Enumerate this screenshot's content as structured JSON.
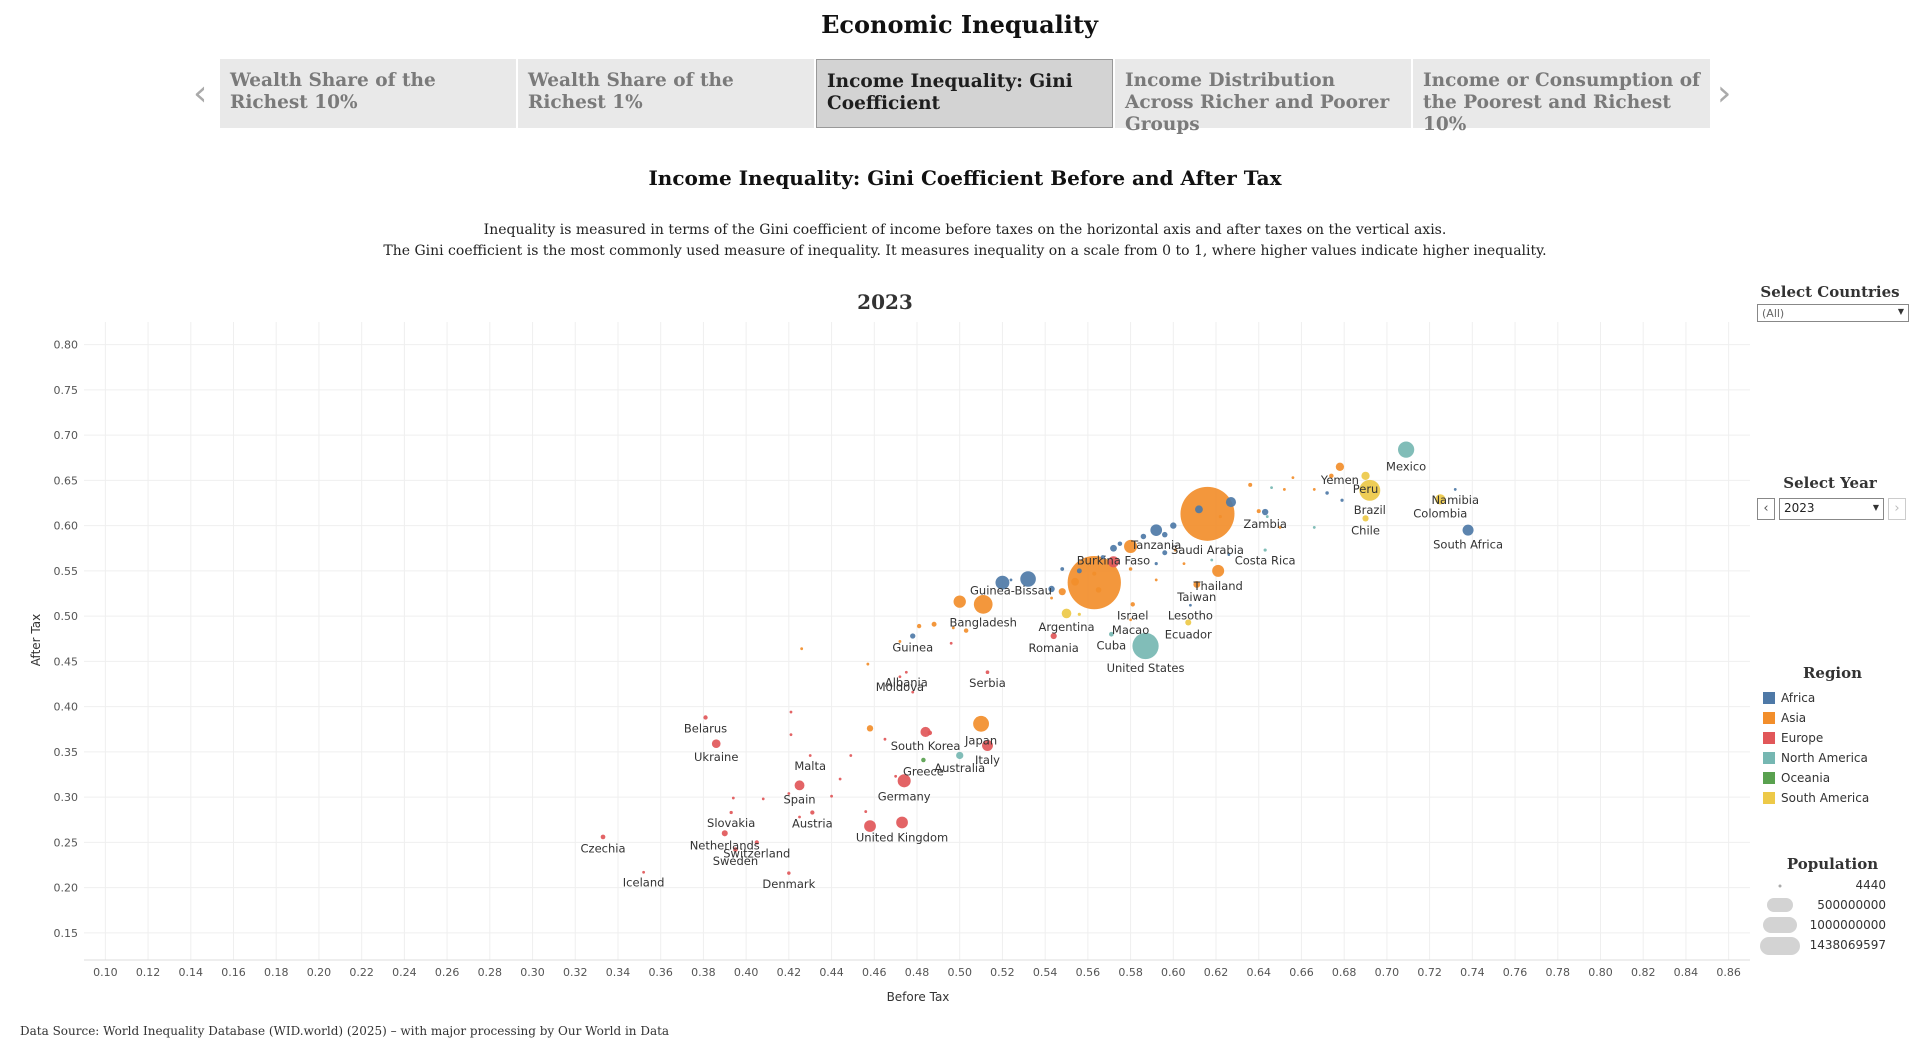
{
  "page_title": "Economic Inequality",
  "tabs": [
    {
      "label": "Wealth Share of the Richest 10%"
    },
    {
      "label": "Wealth Share of the Richest 1%"
    },
    {
      "label": "Income Inequality: Gini Coefficient"
    },
    {
      "label": "Income Distribution Across Richer and Poorer Groups"
    },
    {
      "label": "Income or Consumption of the Poorest and Richest 10%"
    }
  ],
  "nav": {
    "prev_icon": "chevron-left-icon",
    "next_icon": "chevron-right-icon",
    "prev_glyph": "‹",
    "next_glyph": "›"
  },
  "chart_title": "Income Inequality: Gini Coefficient Before and After Tax",
  "description": [
    "Inequality is measured in terms of the Gini coefficient of income before taxes on the horizontal axis and after taxes on the vertical axis.",
    "The Gini coefficient is the most commonly used measure of inequality. It measures inequality on a scale from 0 to 1, where higher values indicate higher inequality."
  ],
  "year_heading": "2023",
  "filters": {
    "countries_title": "Select Countries",
    "countries_value": "(All)",
    "year_title": "Select Year",
    "year_value": "2023"
  },
  "legend": {
    "region_title": "Region",
    "regions": [
      {
        "name": "Africa",
        "color": "#4e79a7"
      },
      {
        "name": "Asia",
        "color": "#f28e2b"
      },
      {
        "name": "Europe",
        "color": "#e15759"
      },
      {
        "name": "North America",
        "color": "#76b7b2"
      },
      {
        "name": "Oceania",
        "color": "#59a14f"
      },
      {
        "name": "South America",
        "color": "#edc948"
      }
    ],
    "population_title": "Population",
    "population_values": [
      "4440",
      "500000000",
      "1000000000",
      "1438069597"
    ]
  },
  "source": "Data Source: World Inequality Database (WID.world) (2025) – with major processing by Our World in Data",
  "chart_data": {
    "type": "scatter",
    "xlabel": "Before Tax",
    "ylabel": "After Tax",
    "xlim": [
      0.09,
      0.87
    ],
    "ylim": [
      0.12,
      0.825
    ],
    "x_ticks": [
      "0.10",
      "0.12",
      "0.14",
      "0.16",
      "0.18",
      "0.20",
      "0.22",
      "0.24",
      "0.26",
      "0.28",
      "0.30",
      "0.32",
      "0.34",
      "0.36",
      "0.38",
      "0.40",
      "0.42",
      "0.44",
      "0.46",
      "0.48",
      "0.50",
      "0.52",
      "0.54",
      "0.56",
      "0.58",
      "0.60",
      "0.62",
      "0.64",
      "0.66",
      "0.68",
      "0.70",
      "0.72",
      "0.74",
      "0.76",
      "0.78",
      "0.80",
      "0.82",
      "0.84",
      "0.86"
    ],
    "y_ticks": [
      "0.15",
      "0.20",
      "0.25",
      "0.30",
      "0.35",
      "0.40",
      "0.45",
      "0.50",
      "0.55",
      "0.60",
      "0.65",
      "0.70",
      "0.75",
      "0.80"
    ],
    "grid": true,
    "points": [
      {
        "label": "Saudi Arabia",
        "x": 0.616,
        "y": 0.613,
        "region": "Asia",
        "size": 1438069597
      },
      {
        "label": "",
        "x": 0.563,
        "y": 0.537,
        "region": "Asia",
        "size": 1400000000
      },
      {
        "label": "United States",
        "x": 0.587,
        "y": 0.467,
        "region": "North America",
        "size": 340000000
      },
      {
        "label": "Mexico",
        "x": 0.709,
        "y": 0.684,
        "region": "North America",
        "size": 130000000
      },
      {
        "label": "Brazil",
        "x": 0.692,
        "y": 0.639,
        "region": "South America",
        "size": 216000000
      },
      {
        "label": "South Africa",
        "x": 0.738,
        "y": 0.595,
        "region": "Africa",
        "size": 60000000
      },
      {
        "label": "Colombia",
        "x": 0.725,
        "y": 0.629,
        "region": "South America",
        "size": 52000000
      },
      {
        "label": "Namibia",
        "x": 0.732,
        "y": 0.64,
        "region": "Africa",
        "size": 2600000
      },
      {
        "label": "Peru",
        "x": 0.69,
        "y": 0.655,
        "region": "South America",
        "size": 34000000
      },
      {
        "label": "Yemen",
        "x": 0.678,
        "y": 0.665,
        "region": "Asia",
        "size": 34000000
      },
      {
        "label": "Chile",
        "x": 0.69,
        "y": 0.608,
        "region": "South America",
        "size": 19000000
      },
      {
        "label": "Zambia",
        "x": 0.643,
        "y": 0.615,
        "region": "Africa",
        "size": 20000000
      },
      {
        "label": "Costa Rica",
        "x": 0.643,
        "y": 0.573,
        "region": "North America",
        "size": 5000000
      },
      {
        "label": "Thailand",
        "x": 0.621,
        "y": 0.55,
        "region": "Asia",
        "size": 71000000
      },
      {
        "label": "Taiwan",
        "x": 0.611,
        "y": 0.535,
        "region": "Asia",
        "size": 23000000
      },
      {
        "label": "Tanzania",
        "x": 0.592,
        "y": 0.595,
        "region": "Africa",
        "size": 67000000
      },
      {
        "label": "Burkina Faso",
        "x": 0.572,
        "y": 0.575,
        "region": "Africa",
        "size": 23000000
      },
      {
        "label": "Lesotho",
        "x": 0.608,
        "y": 0.512,
        "region": "Africa",
        "size": 2300000
      },
      {
        "label": "Israel",
        "x": 0.581,
        "y": 0.513,
        "region": "Asia",
        "size": 9700000
      },
      {
        "label": "Ecuador",
        "x": 0.607,
        "y": 0.493,
        "region": "South America",
        "size": 18000000
      },
      {
        "label": "Macao",
        "x": 0.58,
        "y": 0.496,
        "region": "Asia",
        "size": 700000
      },
      {
        "label": "Cuba",
        "x": 0.571,
        "y": 0.48,
        "region": "North America",
        "size": 11000000
      },
      {
        "label": "Argentina",
        "x": 0.55,
        "y": 0.503,
        "region": "South America",
        "size": 46000000
      },
      {
        "label": "Romania",
        "x": 0.544,
        "y": 0.478,
        "region": "Europe",
        "size": 19000000
      },
      {
        "label": "Guinea-Bissau",
        "x": 0.524,
        "y": 0.54,
        "region": "Africa",
        "size": 2100000
      },
      {
        "label": "Bangladesh",
        "x": 0.511,
        "y": 0.513,
        "region": "Asia",
        "size": 173000000
      },
      {
        "label": "Guinea",
        "x": 0.478,
        "y": 0.478,
        "region": "Africa",
        "size": 14000000
      },
      {
        "label": "Albania",
        "x": 0.475,
        "y": 0.438,
        "region": "Europe",
        "size": 2800000
      },
      {
        "label": "Moldova",
        "x": 0.472,
        "y": 0.433,
        "region": "Europe",
        "size": 2500000
      },
      {
        "label": "Serbia",
        "x": 0.513,
        "y": 0.438,
        "region": "Europe",
        "size": 6600000
      },
      {
        "label": "South Korea",
        "x": 0.484,
        "y": 0.372,
        "region": "Europe",
        "size": 51000000
      },
      {
        "label": "Japan",
        "x": 0.51,
        "y": 0.381,
        "region": "Asia",
        "size": 124000000
      },
      {
        "label": "Italy",
        "x": 0.513,
        "y": 0.357,
        "region": "Europe",
        "size": 59000000
      },
      {
        "label": "Australia",
        "x": 0.5,
        "y": 0.346,
        "region": "North America",
        "size": 26000000
      },
      {
        "label": "Greece",
        "x": 0.483,
        "y": 0.341,
        "region": "Oceania",
        "size": 10000000
      },
      {
        "label": "Germany",
        "x": 0.474,
        "y": 0.318,
        "region": "Europe",
        "size": 84000000
      },
      {
        "label": "United Kingdom",
        "x": 0.473,
        "y": 0.272,
        "region": "Europe",
        "size": 68000000
      },
      {
        "label": "",
        "x": 0.458,
        "y": 0.268,
        "region": "Europe",
        "size": 68000000
      },
      {
        "label": "Malta",
        "x": 0.43,
        "y": 0.346,
        "region": "Europe",
        "size": 500000
      },
      {
        "label": "Spain",
        "x": 0.425,
        "y": 0.313,
        "region": "Europe",
        "size": 48000000
      },
      {
        "label": "Austria",
        "x": 0.431,
        "y": 0.283,
        "region": "Europe",
        "size": 9100000
      },
      {
        "label": "Switzerland",
        "x": 0.405,
        "y": 0.25,
        "region": "Europe",
        "size": 8800000
      },
      {
        "label": "Denmark",
        "x": 0.42,
        "y": 0.216,
        "region": "Europe",
        "size": 5900000
      },
      {
        "label": "Sweden",
        "x": 0.395,
        "y": 0.242,
        "region": "Europe",
        "size": 10500000
      },
      {
        "label": "Slovakia",
        "x": 0.393,
        "y": 0.283,
        "region": "Europe",
        "size": 5400000
      },
      {
        "label": "Netherlands",
        "x": 0.39,
        "y": 0.26,
        "region": "Europe",
        "size": 17900000
      },
      {
        "label": "Czechia",
        "x": 0.333,
        "y": 0.256,
        "region": "Europe",
        "size": 10900000
      },
      {
        "label": "Iceland",
        "x": 0.352,
        "y": 0.217,
        "region": "Europe",
        "size": 380000
      },
      {
        "label": "Ukraine",
        "x": 0.386,
        "y": 0.359,
        "region": "Europe",
        "size": 37000000
      },
      {
        "label": "Belarus",
        "x": 0.381,
        "y": 0.388,
        "region": "Europe",
        "size": 9200000
      },
      {
        "label": "",
        "x": 0.532,
        "y": 0.541,
        "region": "Africa",
        "size": 120000000
      },
      {
        "label": "",
        "x": 0.52,
        "y": 0.537,
        "region": "Africa",
        "size": 95000000
      },
      {
        "label": "",
        "x": 0.5,
        "y": 0.516,
        "region": "Asia",
        "size": 75000000
      },
      {
        "label": "",
        "x": 0.58,
        "y": 0.577,
        "region": "Asia",
        "size": 85000000
      },
      {
        "label": "",
        "x": 0.572,
        "y": 0.56,
        "region": "Europe",
        "size": 60000000
      },
      {
        "label": "",
        "x": 0.627,
        "y": 0.626,
        "region": "Africa",
        "size": 50000000
      },
      {
        "label": "",
        "x": 0.612,
        "y": 0.618,
        "region": "Africa",
        "size": 30000000
      },
      {
        "label": "",
        "x": 0.6,
        "y": 0.6,
        "region": "Africa",
        "size": 20000000
      },
      {
        "label": "",
        "x": 0.596,
        "y": 0.59,
        "region": "Africa",
        "size": 15000000
      },
      {
        "label": "",
        "x": 0.586,
        "y": 0.588,
        "region": "Africa",
        "size": 15000000
      },
      {
        "label": "",
        "x": 0.596,
        "y": 0.57,
        "region": "Africa",
        "size": 12000000
      },
      {
        "label": "",
        "x": 0.575,
        "y": 0.58,
        "region": "Africa",
        "size": 10000000
      },
      {
        "label": "",
        "x": 0.567,
        "y": 0.565,
        "region": "Africa",
        "size": 9000000
      },
      {
        "label": "",
        "x": 0.556,
        "y": 0.55,
        "region": "Africa",
        "size": 12000000
      },
      {
        "label": "",
        "x": 0.548,
        "y": 0.552,
        "region": "Africa",
        "size": 7000000
      },
      {
        "label": "",
        "x": 0.543,
        "y": 0.53,
        "region": "Africa",
        "size": 20000000
      },
      {
        "label": "",
        "x": 0.554,
        "y": 0.538,
        "region": "Asia",
        "size": 30000000
      },
      {
        "label": "",
        "x": 0.548,
        "y": 0.527,
        "region": "Asia",
        "size": 25000000
      },
      {
        "label": "",
        "x": 0.563,
        "y": 0.547,
        "region": "Asia",
        "size": 8000000
      },
      {
        "label": "",
        "x": 0.58,
        "y": 0.552,
        "region": "Asia",
        "size": 6000000
      },
      {
        "label": "",
        "x": 0.601,
        "y": 0.573,
        "region": "Asia",
        "size": 5000000
      },
      {
        "label": "",
        "x": 0.622,
        "y": 0.61,
        "region": "Asia",
        "size": 5000000
      },
      {
        "label": "",
        "x": 0.636,
        "y": 0.645,
        "region": "Asia",
        "size": 8000000
      },
      {
        "label": "",
        "x": 0.64,
        "y": 0.616,
        "region": "Asia",
        "size": 8000000
      },
      {
        "label": "",
        "x": 0.652,
        "y": 0.64,
        "region": "Asia",
        "size": 4000000
      },
      {
        "label": "",
        "x": 0.666,
        "y": 0.64,
        "region": "Asia",
        "size": 3000000
      },
      {
        "label": "",
        "x": 0.674,
        "y": 0.655,
        "region": "Asia",
        "size": 10000000
      },
      {
        "label": "",
        "x": 0.65,
        "y": 0.598,
        "region": "Asia",
        "size": 3000000
      },
      {
        "label": "",
        "x": 0.646,
        "y": 0.642,
        "region": "North America",
        "size": 2000000
      },
      {
        "label": "",
        "x": 0.656,
        "y": 0.653,
        "region": "Asia",
        "size": 2000000
      },
      {
        "label": "",
        "x": 0.672,
        "y": 0.636,
        "region": "Africa",
        "size": 6000000
      },
      {
        "label": "",
        "x": 0.679,
        "y": 0.628,
        "region": "Africa",
        "size": 5000000
      },
      {
        "label": "",
        "x": 0.666,
        "y": 0.598,
        "region": "North America",
        "size": 2500000
      },
      {
        "label": "",
        "x": 0.644,
        "y": 0.61,
        "region": "North America",
        "size": 3000000
      },
      {
        "label": "",
        "x": 0.626,
        "y": 0.568,
        "region": "Africa",
        "size": 3000000
      },
      {
        "label": "",
        "x": 0.618,
        "y": 0.562,
        "region": "North America",
        "size": 2000000
      },
      {
        "label": "",
        "x": 0.592,
        "y": 0.558,
        "region": "Africa",
        "size": 5000000
      },
      {
        "label": "",
        "x": 0.605,
        "y": 0.558,
        "region": "Asia",
        "size": 3000000
      },
      {
        "label": "",
        "x": 0.565,
        "y": 0.529,
        "region": "Asia",
        "size": 15000000
      },
      {
        "label": "",
        "x": 0.543,
        "y": 0.52,
        "region": "Asia",
        "size": 4000000
      },
      {
        "label": "",
        "x": 0.556,
        "y": 0.502,
        "region": "South America",
        "size": 5000000
      },
      {
        "label": "",
        "x": 0.592,
        "y": 0.54,
        "region": "Asia",
        "size": 3000000
      },
      {
        "label": "",
        "x": 0.488,
        "y": 0.491,
        "region": "Asia",
        "size": 12000000
      },
      {
        "label": "",
        "x": 0.481,
        "y": 0.489,
        "region": "Asia",
        "size": 9000000
      },
      {
        "label": "",
        "x": 0.503,
        "y": 0.484,
        "region": "Asia",
        "size": 10000000
      },
      {
        "label": "",
        "x": 0.497,
        "y": 0.487,
        "region": "Asia",
        "size": 3000000
      },
      {
        "label": "",
        "x": 0.472,
        "y": 0.472,
        "region": "Asia",
        "size": 2000000
      },
      {
        "label": "",
        "x": 0.496,
        "y": 0.47,
        "region": "Europe",
        "size": 2000000
      },
      {
        "label": "",
        "x": 0.426,
        "y": 0.464,
        "region": "Asia",
        "size": 1000000
      },
      {
        "label": "",
        "x": 0.457,
        "y": 0.447,
        "region": "Asia",
        "size": 2000000
      },
      {
        "label": "",
        "x": 0.478,
        "y": 0.416,
        "region": "Europe",
        "size": 1500000
      },
      {
        "label": "",
        "x": 0.421,
        "y": 0.394,
        "region": "Europe",
        "size": 500000
      },
      {
        "label": "",
        "x": 0.421,
        "y": 0.369,
        "region": "Europe",
        "size": 500000
      },
      {
        "label": "",
        "x": 0.458,
        "y": 0.376,
        "region": "Asia",
        "size": 20000000
      },
      {
        "label": "",
        "x": 0.486,
        "y": 0.371,
        "region": "Europe",
        "size": 10000000
      },
      {
        "label": "",
        "x": 0.465,
        "y": 0.364,
        "region": "Europe",
        "size": 2000000
      },
      {
        "label": "",
        "x": 0.449,
        "y": 0.346,
        "region": "Europe",
        "size": 2000000
      },
      {
        "label": "",
        "x": 0.444,
        "y": 0.32,
        "region": "Europe",
        "size": 2000000
      },
      {
        "label": "",
        "x": 0.47,
        "y": 0.323,
        "region": "Europe",
        "size": 1500000
      },
      {
        "label": "",
        "x": 0.42,
        "y": 0.304,
        "region": "Europe",
        "size": 2000000
      },
      {
        "label": "",
        "x": 0.408,
        "y": 0.298,
        "region": "Europe",
        "size": 1500000
      },
      {
        "label": "",
        "x": 0.425,
        "y": 0.278,
        "region": "Europe",
        "size": 1000000
      },
      {
        "label": "",
        "x": 0.394,
        "y": 0.299,
        "region": "Europe",
        "size": 500000
      },
      {
        "label": "",
        "x": 0.456,
        "y": 0.284,
        "region": "Europe",
        "size": 1000000
      },
      {
        "label": "",
        "x": 0.44,
        "y": 0.301,
        "region": "Europe",
        "size": 1000000
      }
    ]
  }
}
